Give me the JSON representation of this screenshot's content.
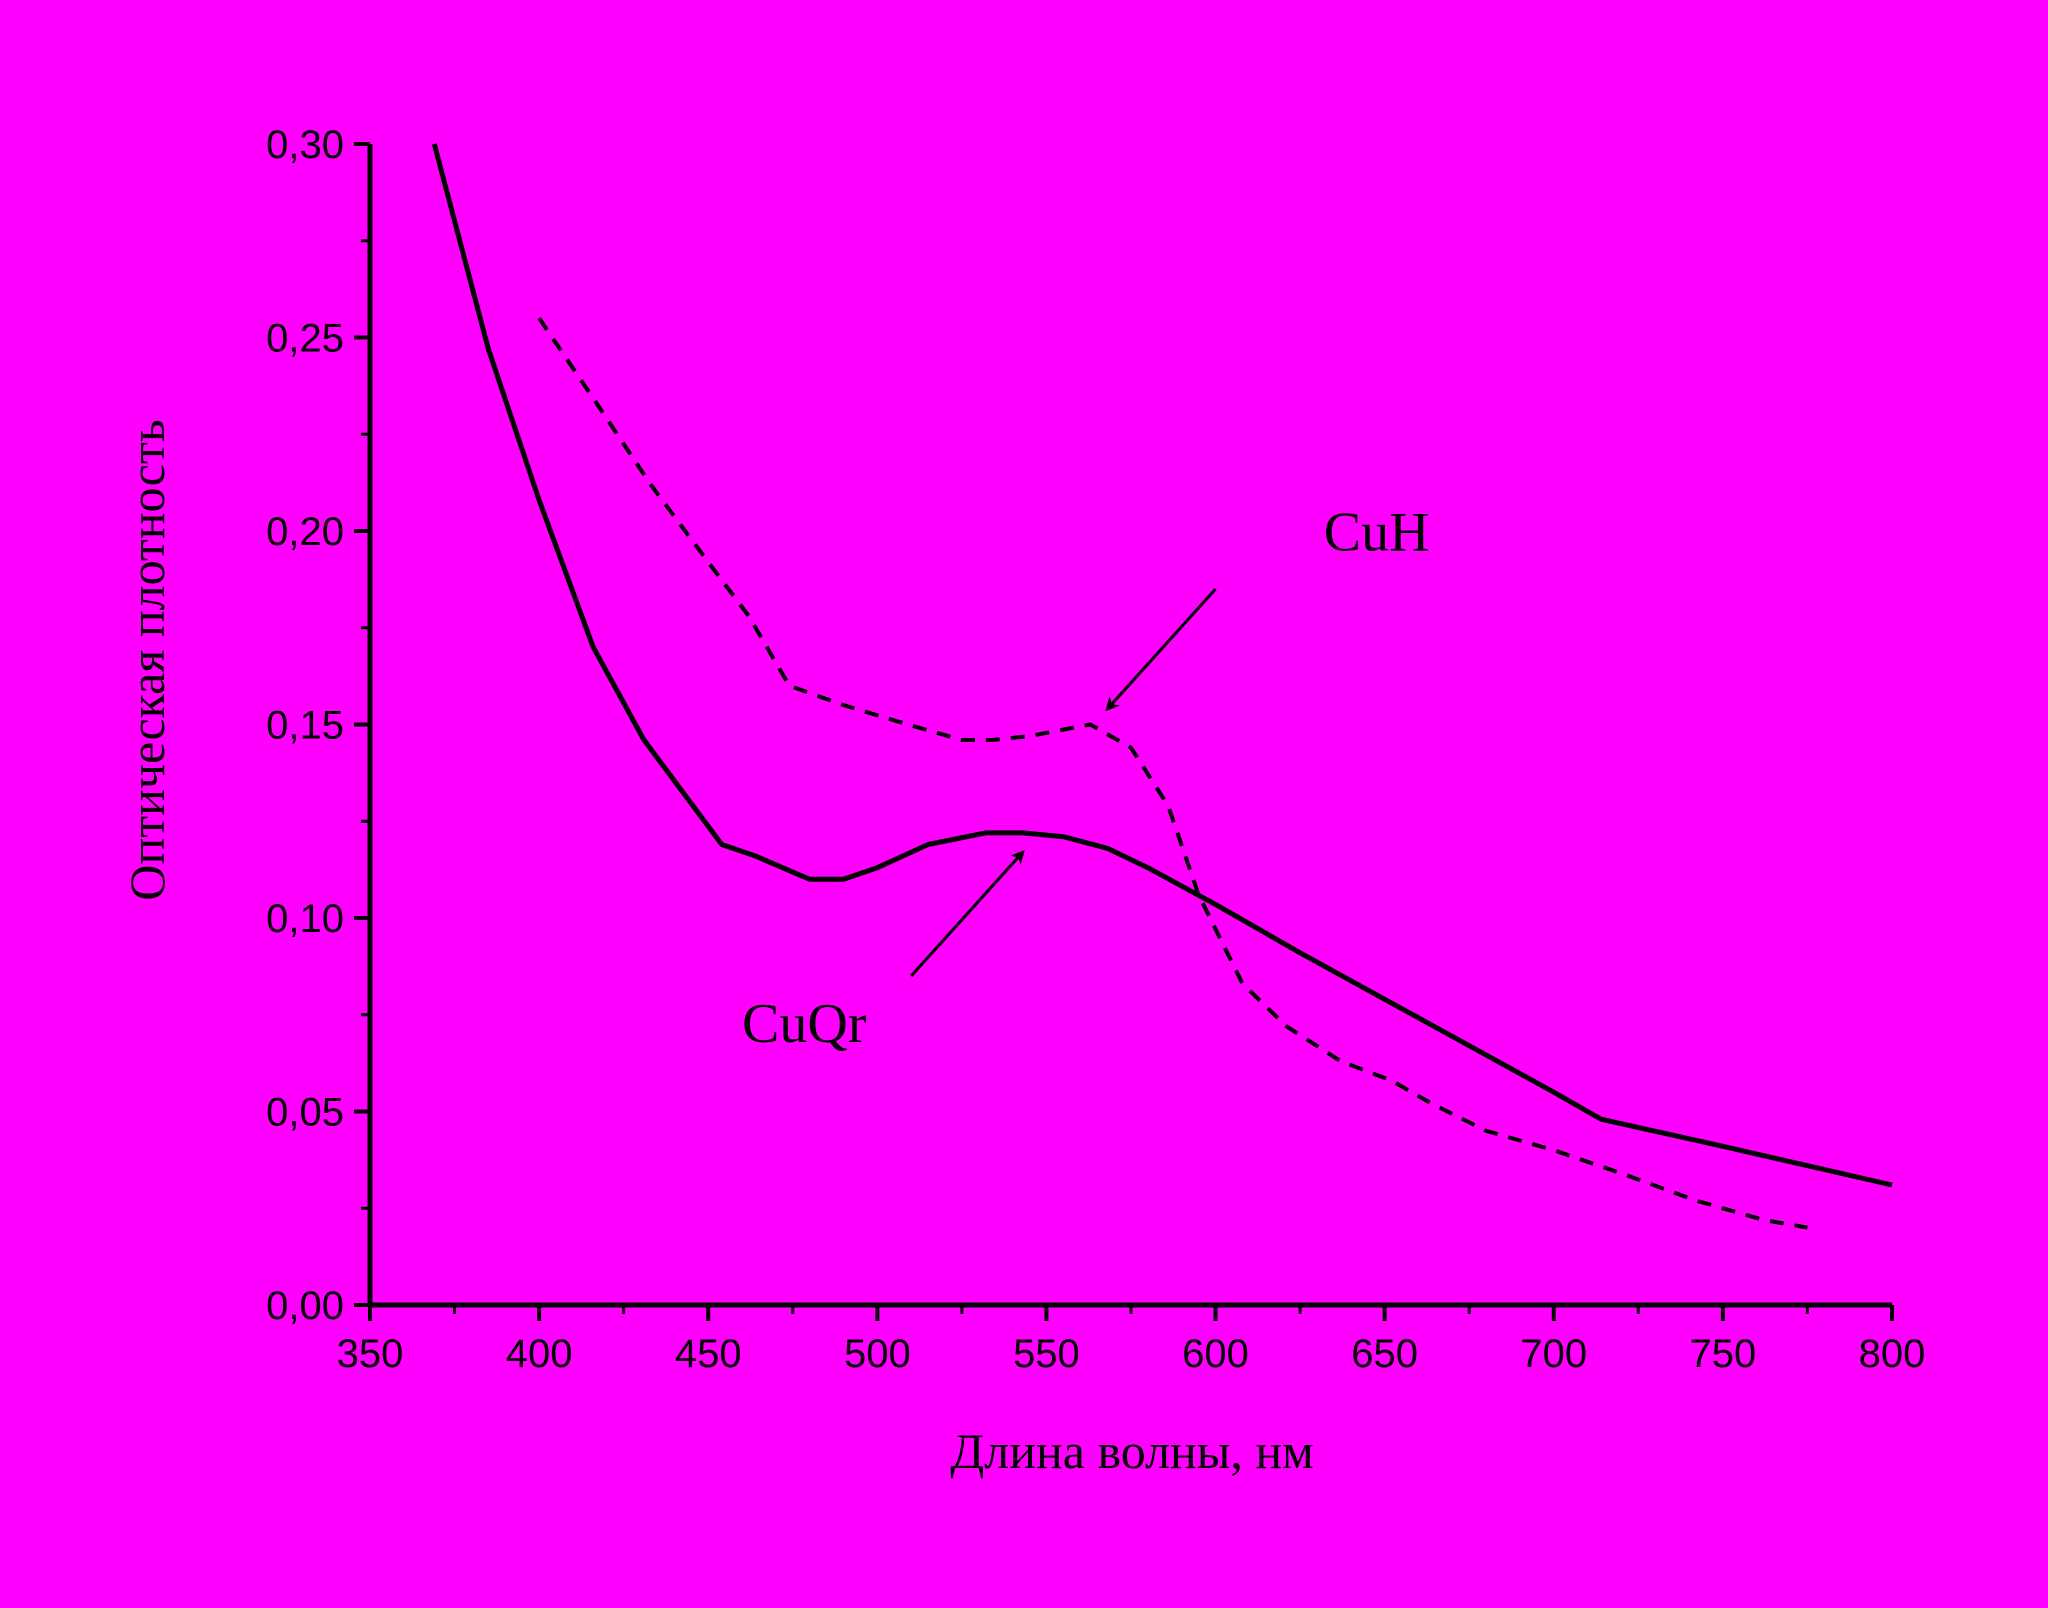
{
  "page": {
    "background": "#ff00ff"
  },
  "chart_data": {
    "type": "line",
    "title": "",
    "xlabel": "Длина волны, нм",
    "ylabel": "Оптическая плотность",
    "xlim": [
      350,
      800
    ],
    "ylim": [
      0.0,
      0.3
    ],
    "x_ticks": [
      350,
      400,
      450,
      500,
      550,
      600,
      650,
      700,
      750,
      800
    ],
    "x_tick_labels": [
      "350",
      "400",
      "450",
      "500",
      "550",
      "600",
      "650",
      "700",
      "750",
      "800"
    ],
    "y_ticks": [
      0.0,
      0.05,
      0.1,
      0.15,
      0.2,
      0.25,
      0.3
    ],
    "y_tick_labels": [
      "0,00",
      "0,05",
      "0,10",
      "0,15",
      "0,20",
      "0,25",
      "0,30"
    ],
    "grid": false,
    "legend": false,
    "series": [
      {
        "name": "CuQr",
        "style": "solid",
        "color": "#000000",
        "x": [
          369,
          385,
          400,
          416,
          431,
          454,
          464,
          480,
          490,
          500,
          515,
          532,
          543,
          555,
          568,
          580,
          600,
          625,
          650,
          675,
          700,
          714,
          750,
          800
        ],
        "y": [
          0.3,
          0.247,
          0.208,
          0.17,
          0.146,
          0.119,
          0.116,
          0.11,
          0.11,
          0.113,
          0.119,
          0.122,
          0.122,
          0.121,
          0.118,
          0.113,
          0.1035,
          0.091,
          0.079,
          0.067,
          0.055,
          0.048,
          0.041,
          0.031
        ]
      },
      {
        "name": "CuH",
        "style": "dashed",
        "color": "#000000",
        "x": [
          400,
          417,
          433,
          450,
          462,
          474,
          490,
          509,
          525,
          534,
          545,
          563,
          575,
          586,
          595,
          608,
          621,
          637,
          652,
          664,
          680,
          700,
          720,
          742,
          762,
          775
        ],
        "y": [
          0.255,
          0.233,
          0.212,
          0.192,
          0.178,
          0.16,
          0.155,
          0.15,
          0.146,
          0.146,
          0.147,
          0.15,
          0.144,
          0.129,
          0.106,
          0.083,
          0.072,
          0.063,
          0.058,
          0.052,
          0.045,
          0.04,
          0.034,
          0.027,
          0.022,
          0.02
        ]
      }
    ],
    "annotations": [
      {
        "text": "CuH",
        "x": 632,
        "y": 0.195,
        "arrow_from": [
          600,
          0.185
        ],
        "arrow_to": [
          568,
          0.154
        ]
      },
      {
        "text": "CuQr",
        "x": 460,
        "y": 0.068,
        "arrow_from": [
          510,
          0.085
        ],
        "arrow_to": [
          543,
          0.117
        ]
      }
    ]
  }
}
